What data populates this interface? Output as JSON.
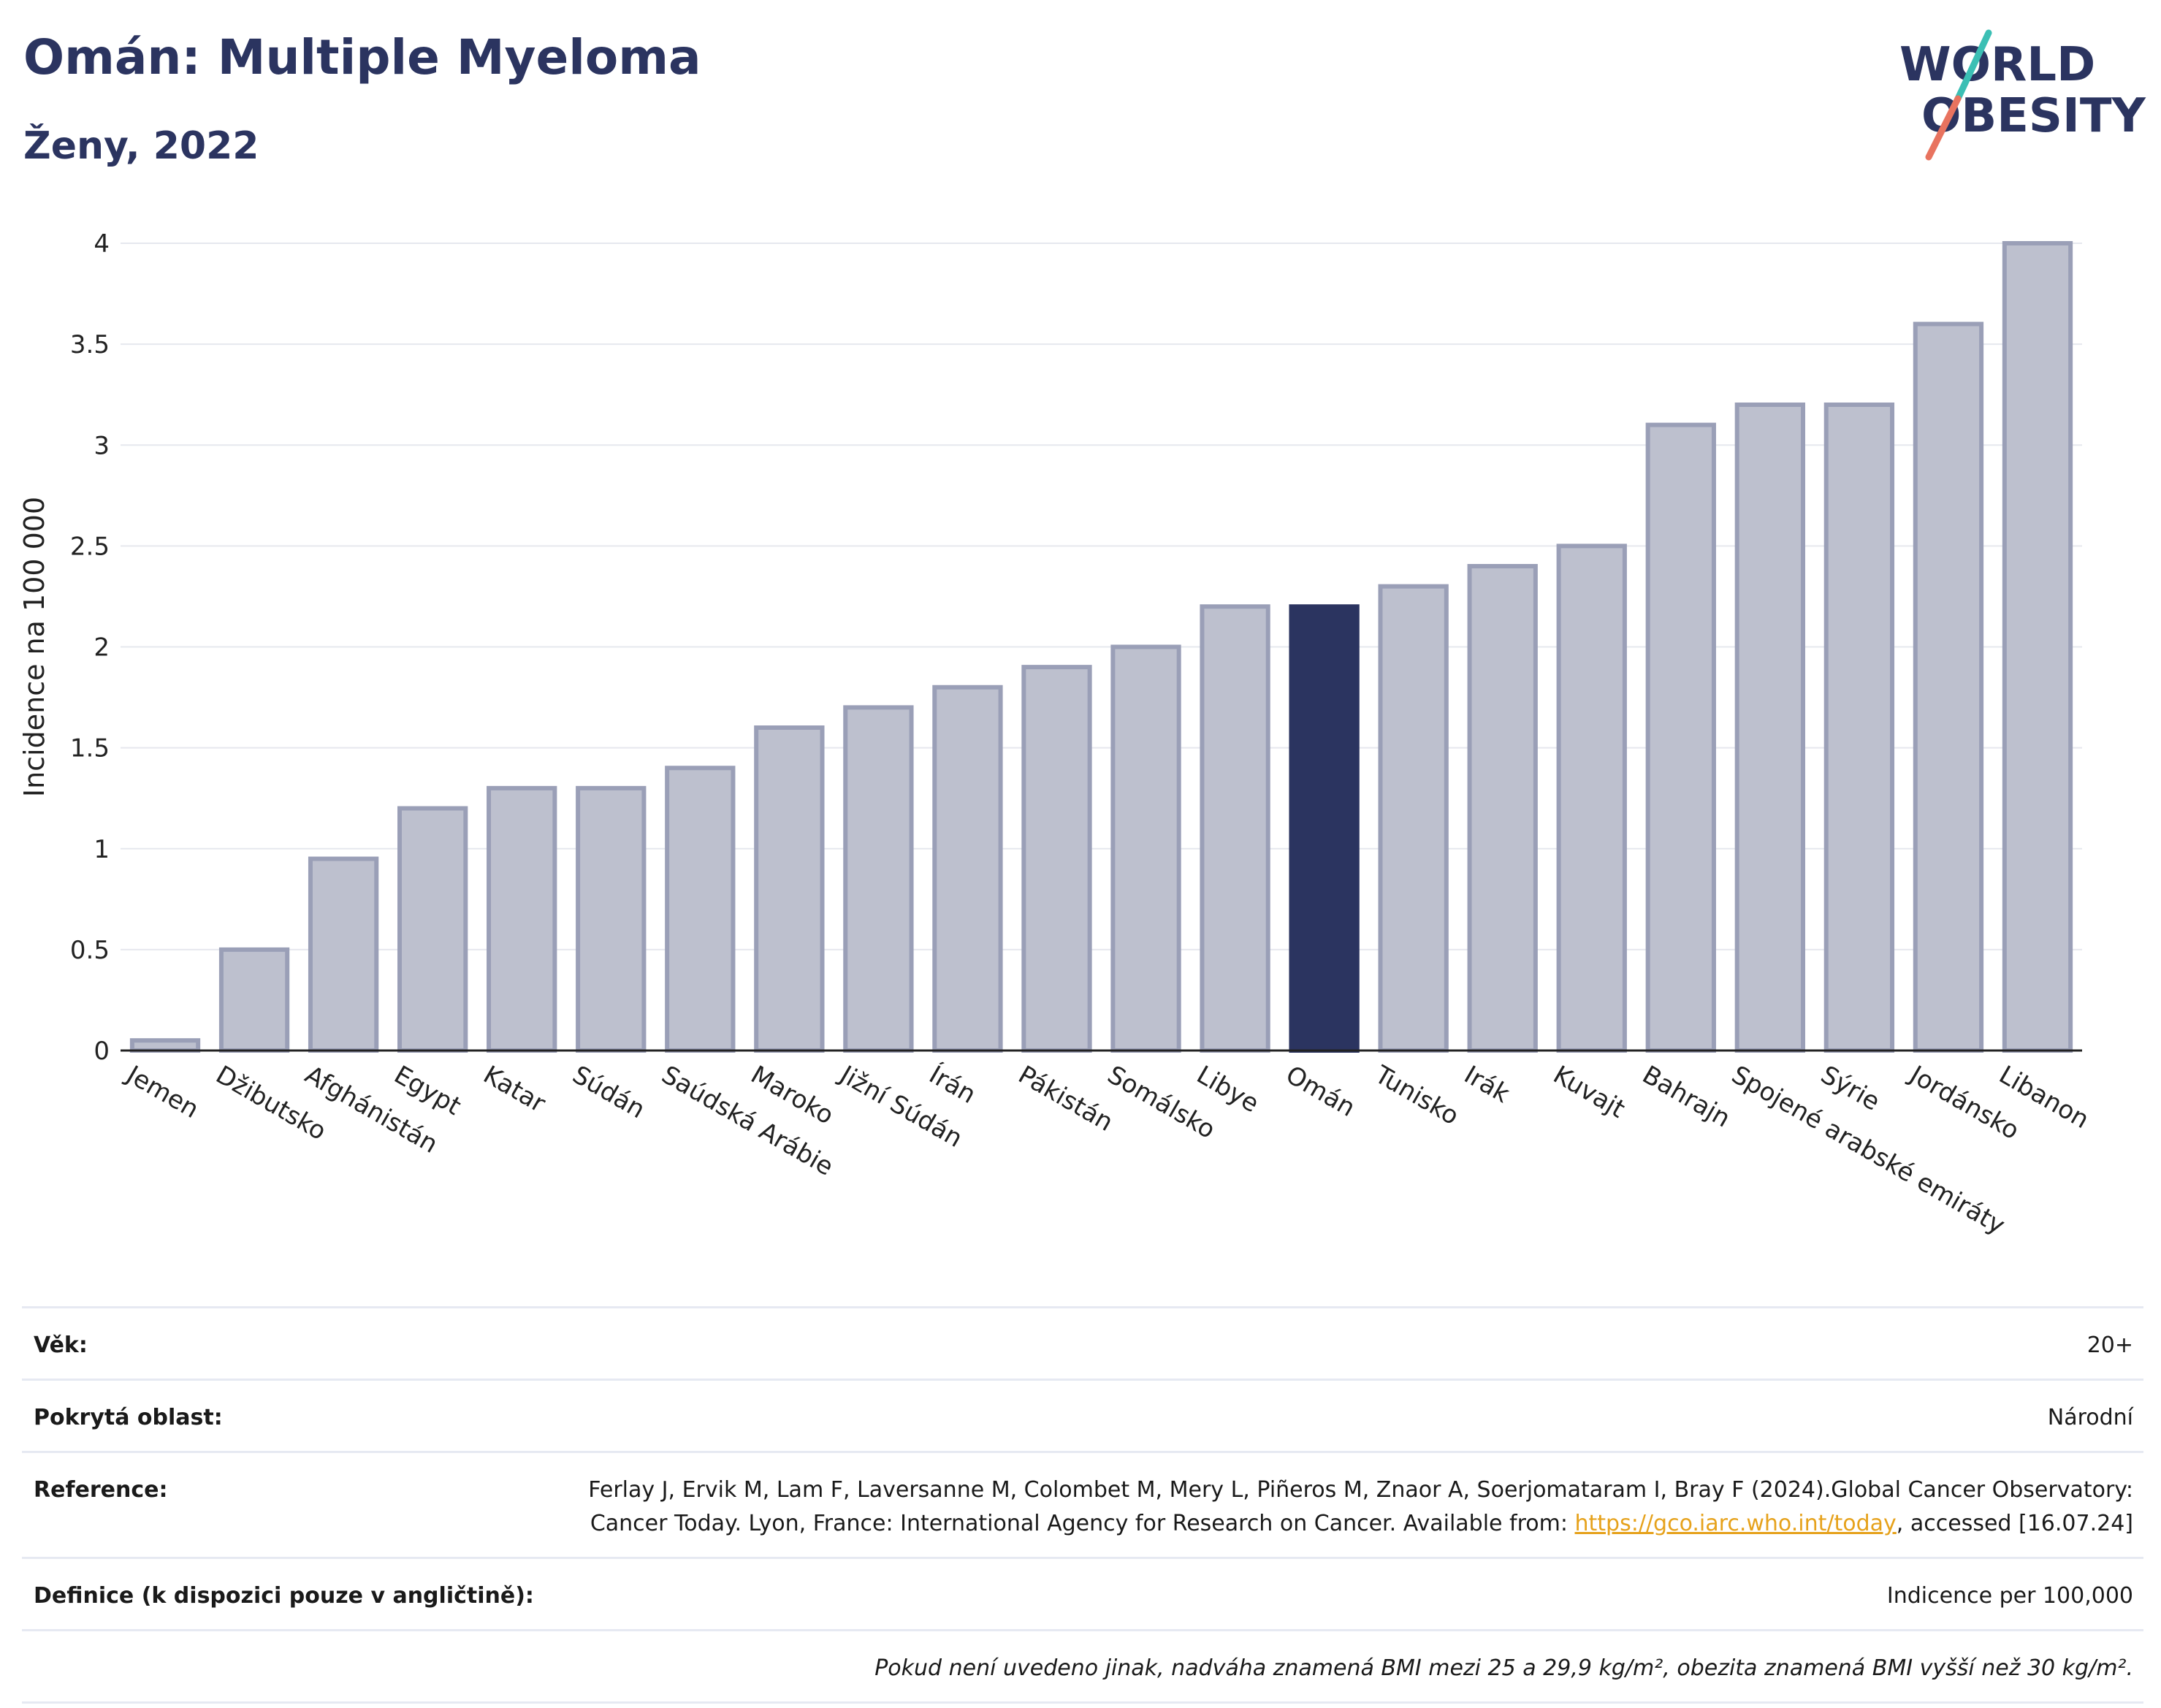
{
  "header": {
    "title": "Omán: Multiple Myeloma",
    "subtitle": "Ženy, 2022"
  },
  "logo": {
    "line1": "WORLD",
    "line2": "OBESITY",
    "colors": {
      "text": "#2b3460",
      "slash_top": "#3bbfb4",
      "slash_bottom": "#e8735f"
    }
  },
  "chart_data": {
    "type": "bar",
    "ylabel": "Incidence na 100 000",
    "ylim": [
      0,
      4
    ],
    "yticks": [
      0,
      0.5,
      1,
      1.5,
      2,
      2.5,
      3,
      3.5,
      4
    ],
    "ytick_labels": [
      "0",
      "0.5",
      "1",
      "1.5",
      "2",
      "2.5",
      "3",
      "3.5",
      "4"
    ],
    "grid": true,
    "highlight": "Omán",
    "colors": {
      "bar": "#bdc0ce",
      "bar_border": "#9a9fb7",
      "highlight": "#2b3460"
    },
    "categories": [
      "Jemen",
      "Džibutsko",
      "Afghánistán",
      "Egypt",
      "Katar",
      "Súdán",
      "Saúdská Arábie",
      "Maroko",
      "Jižní Súdán",
      "Írán",
      "Pákistán",
      "Somálsko",
      "Libye",
      "Omán",
      "Tunisko",
      "Irák",
      "Kuvajt",
      "Bahrajn",
      "Spojené arabské emiráty",
      "Sýrie",
      "Jordánsko",
      "Libanon"
    ],
    "values": [
      0.05,
      0.5,
      0.95,
      1.2,
      1.3,
      1.3,
      1.4,
      1.6,
      1.7,
      1.8,
      1.9,
      2.0,
      2.2,
      2.2,
      2.3,
      2.4,
      2.5,
      3.1,
      3.2,
      3.2,
      3.6,
      4.0
    ]
  },
  "meta": {
    "age": {
      "label": "Věk:",
      "value": "20+"
    },
    "area": {
      "label": "Pokrytá oblast:",
      "value": "Národní"
    },
    "reference": {
      "label": "Reference:",
      "text_before": "Ferlay J, Ervik M, Lam F, Laversanne M, Colombet M, Mery L, Piñeros M, Znaor A, Soerjomataram I, Bray F (2024).Global Cancer Observatory: Cancer Today. Lyon, France: International Agency for Research on Cancer. Available from: ",
      "link": "https://gco.iarc.who.int/today",
      "text_after": ", accessed [16.07.24]"
    },
    "definition": {
      "label": "Definice (k dispozici pouze v angličtině):",
      "value": "Indicence per 100,000"
    },
    "note": "Pokud není uvedeno jinak, nadváha znamená BMI mezi 25 a 29,9 kg/m², obezita znamená BMI vyšší než 30 kg/m²."
  }
}
